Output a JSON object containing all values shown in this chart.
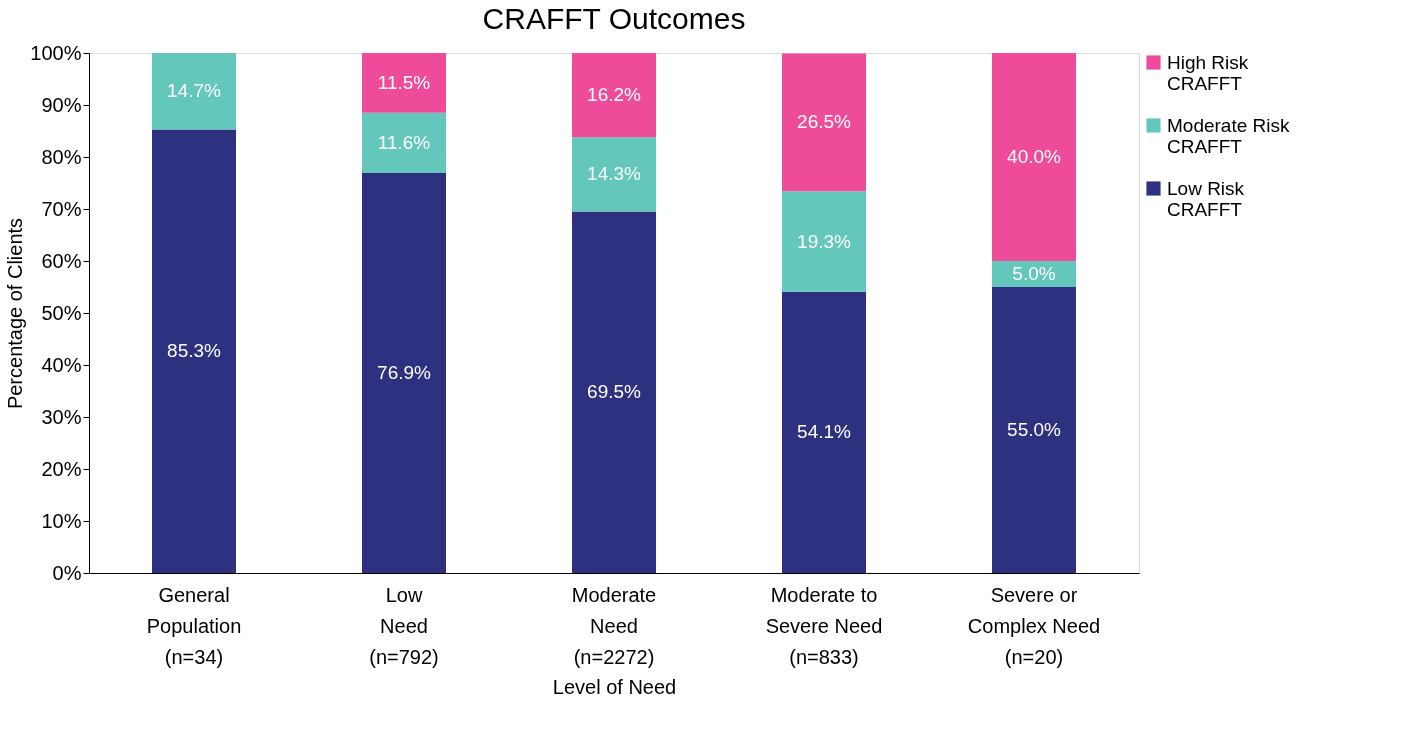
{
  "chart_data": {
    "type": "bar",
    "title": "CRAFFT Outcomes",
    "xlabel": "Level of Need",
    "ylabel": "Percentage of Clients",
    "categories": [
      "General\nPopulation\n(n=34)",
      "Low\nNeed\n(n=792)",
      "Moderate\nNeed\n(n=2272)",
      "Moderate to\nSevere Need\n(n=833)",
      "Severe or\nComplex Need\n(n=20)"
    ],
    "stacked": true,
    "series": [
      {
        "name": "Low Risk\nCRAFFT",
        "color": "#2e3080",
        "values": [
          85.3,
          76.9,
          69.5,
          54.1,
          55.0
        ],
        "value_labels": [
          "85.3%",
          "76.9%",
          "69.5%",
          "54.1%",
          "55.0%"
        ]
      },
      {
        "name": "Moderate Risk\nCRAFFT",
        "color": "#64c7bc",
        "values": [
          14.7,
          11.6,
          14.3,
          19.3,
          5.0
        ],
        "value_labels": [
          "14.7%",
          "11.6%",
          "14.3%",
          "19.3%",
          "5.0%"
        ]
      },
      {
        "name": "High Risk\nCRAFFT",
        "color": "#ee4b9b",
        "values": [
          null,
          11.5,
          16.2,
          26.5,
          40.0
        ],
        "value_labels": [
          null,
          "11.5%",
          "16.2%",
          "26.5%",
          "40.0%"
        ]
      }
    ],
    "ylim": [
      0,
      100
    ],
    "yticks": [
      {
        "value": 0,
        "label": "0%"
      },
      {
        "value": 10,
        "label": "10%"
      },
      {
        "value": 20,
        "label": "20%"
      },
      {
        "value": 30,
        "label": "30%"
      },
      {
        "value": 40,
        "label": "40%"
      },
      {
        "value": 50,
        "label": "50%"
      },
      {
        "value": 60,
        "label": "60%"
      },
      {
        "value": 70,
        "label": "70%"
      },
      {
        "value": 80,
        "label": "80%"
      },
      {
        "value": 90,
        "label": "90%"
      },
      {
        "value": 100,
        "label": "100%"
      }
    ],
    "grid": false,
    "legend": "right"
  }
}
